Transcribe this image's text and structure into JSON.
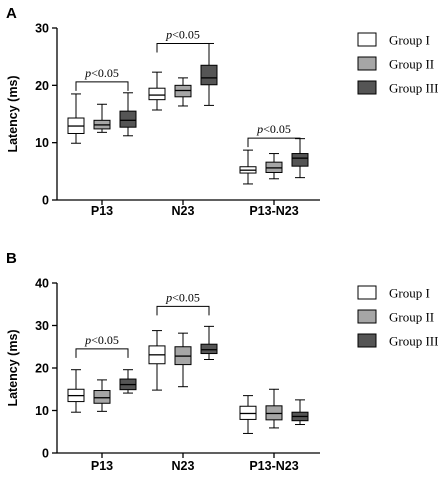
{
  "chart_data": [
    {
      "type": "boxplot",
      "panel_label": "A",
      "ylabel": "Latency (ms)",
      "ylim": [
        0,
        30
      ],
      "yticks": [
        0,
        10,
        20,
        30
      ],
      "categories": [
        "P13",
        "N23",
        "P13-N23"
      ],
      "series": [
        {
          "name": "Group I",
          "color": "#ffffff",
          "boxes": [
            {
              "min": 9.9,
              "q1": 11.6,
              "median": 12.9,
              "q3": 14.3,
              "max": 18.5
            },
            {
              "min": 15.7,
              "q1": 17.5,
              "median": 18.3,
              "q3": 19.5,
              "max": 22.3
            },
            {
              "min": 2.8,
              "q1": 4.7,
              "median": 5.2,
              "q3": 5.8,
              "max": 8.7
            }
          ]
        },
        {
          "name": "Group II",
          "color": "#a6a6a6",
          "boxes": [
            {
              "min": 11.8,
              "q1": 12.4,
              "median": 13.1,
              "q3": 13.9,
              "max": 16.7
            },
            {
              "min": 16.4,
              "q1": 18.0,
              "median": 19.1,
              "q3": 20.0,
              "max": 21.3
            },
            {
              "min": 3.7,
              "q1": 4.8,
              "median": 5.6,
              "q3": 6.6,
              "max": 8.1
            }
          ]
        },
        {
          "name": "Group III",
          "color": "#555555",
          "boxes": [
            {
              "min": 11.2,
              "q1": 12.7,
              "median": 13.9,
              "q3": 15.5,
              "max": 18.7
            },
            {
              "min": 16.5,
              "q1": 20.1,
              "median": 21.3,
              "q3": 23.5,
              "max": 27.3
            },
            {
              "min": 3.9,
              "q1": 5.9,
              "median": 7.3,
              "q3": 8.1,
              "max": 10.7
            }
          ]
        }
      ],
      "annotations": [
        {
          "text": "p<0.05",
          "category": "P13",
          "y_bracket": 20.6
        },
        {
          "text": "p<0.05",
          "category": "N23",
          "y_bracket": 27.3
        },
        {
          "text": "p<0.05",
          "category": "P13-N23",
          "y_bracket": 10.8
        }
      ]
    },
    {
      "type": "boxplot",
      "panel_label": "B",
      "ylabel": "Latency (ms)",
      "ylim": [
        0,
        40
      ],
      "yticks": [
        0,
        10,
        20,
        30,
        40
      ],
      "categories": [
        "P13",
        "N23",
        "P13-N23"
      ],
      "series": [
        {
          "name": "Group I",
          "color": "#ffffff",
          "boxes": [
            {
              "min": 9.6,
              "q1": 12.1,
              "median": 13.5,
              "q3": 15.0,
              "max": 19.6
            },
            {
              "min": 14.8,
              "q1": 21.0,
              "median": 23.1,
              "q3": 25.2,
              "max": 28.8
            },
            {
              "min": 4.6,
              "q1": 7.9,
              "median": 9.3,
              "q3": 11.0,
              "max": 13.5
            }
          ]
        },
        {
          "name": "Group II",
          "color": "#a6a6a6",
          "boxes": [
            {
              "min": 9.8,
              "q1": 11.7,
              "median": 13.0,
              "q3": 14.7,
              "max": 17.2
            },
            {
              "min": 15.6,
              "q1": 20.8,
              "median": 22.8,
              "q3": 25.0,
              "max": 28.2
            },
            {
              "min": 5.9,
              "q1": 7.8,
              "median": 9.3,
              "q3": 11.1,
              "max": 15.0
            }
          ]
        },
        {
          "name": "Group III",
          "color": "#555555",
          "boxes": [
            {
              "min": 14.1,
              "q1": 14.9,
              "median": 16.1,
              "q3": 17.4,
              "max": 19.6
            },
            {
              "min": 22.0,
              "q1": 23.4,
              "median": 24.3,
              "q3": 25.6,
              "max": 29.8
            },
            {
              "min": 6.7,
              "q1": 7.6,
              "median": 8.6,
              "q3": 9.6,
              "max": 12.5
            }
          ]
        }
      ],
      "annotations": [
        {
          "text": "p<0.05",
          "category": "P13",
          "y_bracket": 24.5
        },
        {
          "text": "p<0.05",
          "category": "N23",
          "y_bracket": 34.5
        }
      ]
    }
  ]
}
